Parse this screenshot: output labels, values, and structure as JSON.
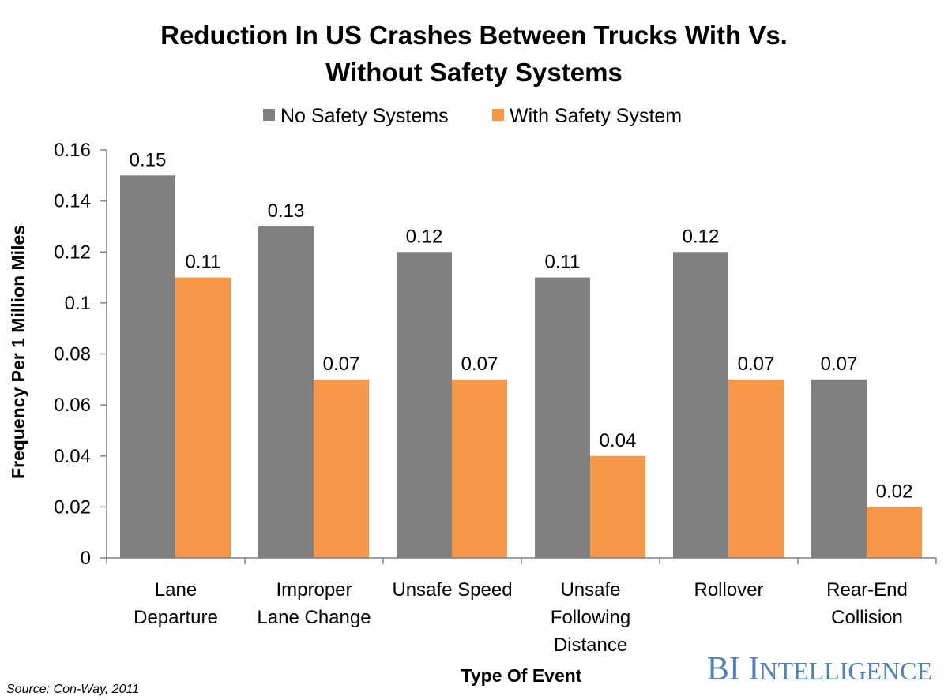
{
  "chart_data": {
    "type": "bar",
    "title_lines": [
      "Reduction In US Crashes Between Trucks With Vs.",
      "Without Safety Systems"
    ],
    "categories": [
      [
        "Lane",
        "Departure"
      ],
      [
        "Improper",
        "Lane Change"
      ],
      [
        "Unsafe Speed"
      ],
      [
        "Unsafe",
        "Following",
        "Distance"
      ],
      [
        "Rollover"
      ],
      [
        "Rear-End",
        "Collision"
      ]
    ],
    "series": [
      {
        "name": "No Safety Systems",
        "color": "#808080",
        "values": [
          0.15,
          0.13,
          0.12,
          0.11,
          0.12,
          0.07
        ]
      },
      {
        "name": "With Safety System",
        "color": "#f79646",
        "values": [
          0.11,
          0.07,
          0.07,
          0.04,
          0.07,
          0.02
        ]
      }
    ],
    "value_labels": [
      [
        "0.15",
        "0.13",
        "0.12",
        "0.11",
        "0.12",
        "0.07"
      ],
      [
        "0.11",
        "0.07",
        "0.07",
        "0.04",
        "0.07",
        "0.02"
      ]
    ],
    "yticks": [
      0,
      0.02,
      0.04,
      0.06,
      0.08,
      0.1,
      0.12,
      0.14,
      0.16
    ],
    "ytick_labels": [
      "0",
      "0.02",
      "0.04",
      "0.06",
      "0.08",
      "0.1",
      "0.12",
      "0.14",
      "0.16"
    ],
    "ylim": [
      0,
      0.16
    ],
    "xlabel": "Type Of Event",
    "ylabel": "Frequency Per 1 Million Miles",
    "legend_position": "top-center",
    "grid": false
  },
  "footer": {
    "source": "Source: Con-Way, 2011",
    "brand_parts": [
      "BI ",
      "I",
      "NTELLIGENCE"
    ],
    "brand_color": "#4f81bd"
  }
}
